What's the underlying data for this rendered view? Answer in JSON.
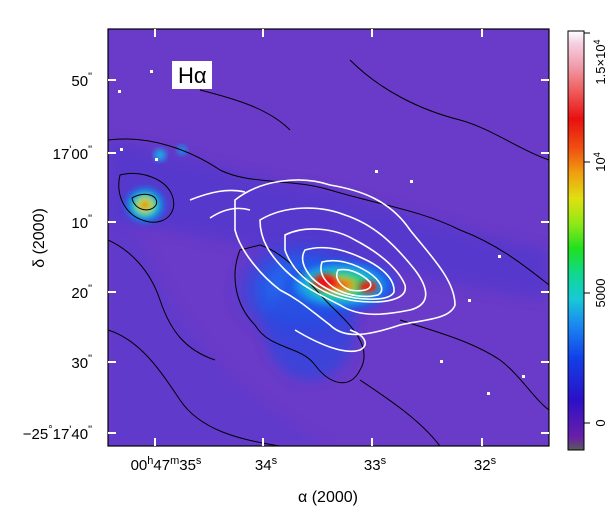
{
  "map": {
    "band_label": "Hα",
    "x_axis_title": "α (2000)",
    "y_axis_title": "δ (2000)",
    "x_ticks": [
      {
        "h": "00",
        "m": "47",
        "s": "35",
        "text_h": "h",
        "text_m": "m",
        "text_s": "s"
      },
      {
        "label": "34",
        "sup": "s"
      },
      {
        "label": "33",
        "sup": "s"
      },
      {
        "label": "32",
        "sup": "s"
      }
    ],
    "y_ticks": [
      {
        "main": "50",
        "sup": "\""
      },
      {
        "main": "17",
        "sup": "'",
        "main2": "00",
        "sup2": "\""
      },
      {
        "main": "10",
        "sup": "\""
      },
      {
        "main": "20",
        "sup": "\""
      },
      {
        "main": "30",
        "sup": "\""
      },
      {
        "main": "−25",
        "sup": "°",
        "main2": "17",
        "sup2": "'",
        "main3": "40",
        "sup3": "\""
      }
    ]
  },
  "colorbar": {
    "ticks": [
      {
        "label": "0"
      },
      {
        "label": "5000"
      },
      {
        "label": "10",
        "sup": "4"
      },
      {
        "label": "1.5×10",
        "sup": "4"
      }
    ],
    "colors": [
      "#5a5a5a",
      "#6a1fa8",
      "#2b10c8",
      "#1240e8",
      "#1a8af0",
      "#18c8d8",
      "#10d890",
      "#20e020",
      "#90e818",
      "#e0e010",
      "#f0a010",
      "#f05010",
      "#e81010",
      "#f06060",
      "#f0a0b0",
      "#f4d0e0",
      "#ffffff"
    ]
  }
}
